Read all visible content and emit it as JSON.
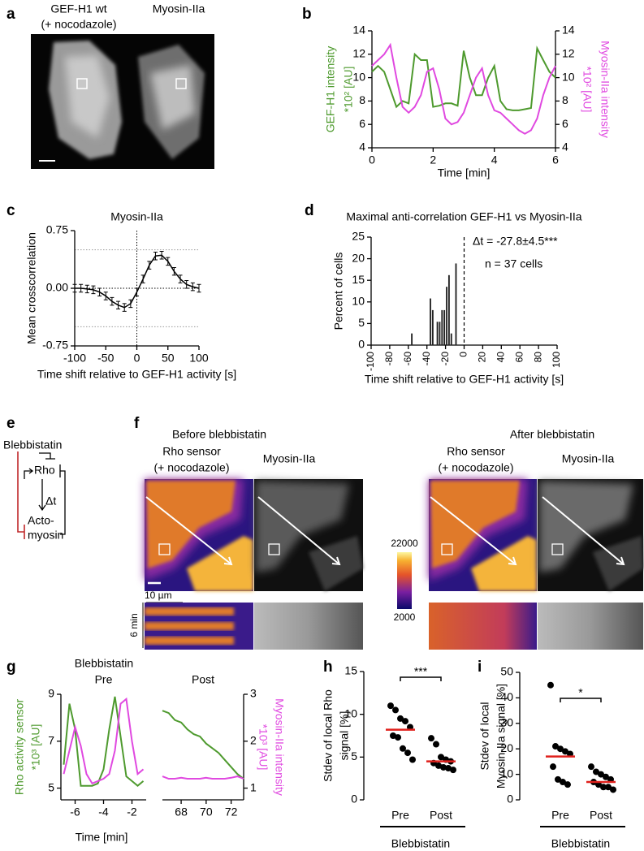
{
  "figure": {
    "a": {
      "letter": "a",
      "labels": [
        "GEF-H1 wt",
        "(+ nocodazole)",
        "Myosin-IIa"
      ]
    },
    "e": {
      "letter": "e",
      "nodes": [
        "Blebbistatin",
        "Rho",
        "Δt",
        "Acto-",
        "myosin"
      ]
    },
    "f": {
      "letter": "f",
      "before": {
        "title": "Before blebbistatin",
        "labels": [
          "Rho sensor",
          "(+ nocodazole)",
          "Myosin-IIa"
        ]
      },
      "after": {
        "title": "After blebbistatin",
        "labels": [
          "Rho sensor",
          "(+ nocodazole)",
          "Myosin-IIa"
        ]
      },
      "colorbar": {
        "max": 22000,
        "min": 2000
      },
      "scale_label": "10 µm",
      "time_label": "6 min"
    },
    "g": {
      "letter": "g",
      "title": "Blebbistatin",
      "xlabel": "Time [min]"
    }
  },
  "chart_data": [
    {
      "type": "line",
      "panel": "b",
      "x": [
        0,
        0.2,
        0.4,
        0.6,
        0.8,
        1,
        1.2,
        1.4,
        1.6,
        1.8,
        2,
        2.2,
        2.4,
        2.6,
        2.8,
        3,
        3.2,
        3.4,
        3.6,
        3.8,
        4,
        4.2,
        4.4,
        4.6,
        4.8,
        5,
        5.2,
        5.4,
        5.6,
        5.8,
        6
      ],
      "xlim": [
        0,
        6
      ],
      "xticks": [
        0,
        2,
        4,
        6
      ],
      "ylim": [
        4,
        14
      ],
      "yticks": [
        4,
        6,
        8,
        10,
        12,
        14
      ],
      "y2lim": [
        4,
        14
      ],
      "y2ticks": [
        4,
        6,
        8,
        10,
        12,
        14
      ],
      "xlabel": "Time [min]",
      "ylabel": [
        "GEF-H1 intensity",
        "*10² [AU]"
      ],
      "y2label": [
        "Myosin-IIa intensity",
        "*10² [AU]"
      ],
      "series": [
        {
          "color": "#4e9a2e",
          "values": [
            10.5,
            11,
            10.5,
            9,
            7.5,
            8,
            7.8,
            12,
            11.5,
            11.5,
            7.5,
            7.6,
            7.8,
            7.8,
            7.6,
            12.3,
            10,
            8.5,
            8.5,
            10,
            11,
            8,
            7.3,
            7.2,
            7.2,
            7.3,
            7.4,
            12.5,
            11.5,
            10.5,
            10
          ]
        },
        {
          "color": "#e049e0",
          "axis": "y2",
          "values": [
            11,
            11.5,
            12,
            12.8,
            10,
            7.5,
            7,
            7.5,
            8.5,
            10.5,
            10.8,
            9,
            6.5,
            6,
            6.2,
            7,
            8.5,
            10,
            10.8,
            8.5,
            7.2,
            7,
            6.5,
            6,
            5.5,
            5.2,
            5.5,
            6.5,
            8.5,
            10,
            11
          ]
        }
      ]
    },
    {
      "type": "errorline",
      "panel": "c",
      "title": "Myosin-IIa",
      "x": [
        -100,
        -90,
        -80,
        -70,
        -60,
        -50,
        -40,
        -30,
        -20,
        -10,
        0,
        10,
        20,
        30,
        40,
        50,
        60,
        70,
        80,
        90,
        100
      ],
      "values": [
        0,
        0,
        -0.01,
        -0.02,
        -0.05,
        -0.1,
        -0.17,
        -0.22,
        -0.25,
        -0.2,
        -0.05,
        0.12,
        0.3,
        0.42,
        0.43,
        0.35,
        0.22,
        0.12,
        0.05,
        0.02,
        0
      ],
      "errors": [
        0.05,
        0.05,
        0.05,
        0.05,
        0.05,
        0.05,
        0.05,
        0.05,
        0.05,
        0.05,
        0.05,
        0.05,
        0.05,
        0.05,
        0.05,
        0.05,
        0.05,
        0.05,
        0.05,
        0.05,
        0.05
      ],
      "color": "#000000",
      "xlim": [
        -100,
        100
      ],
      "xticks": [
        -100,
        -50,
        0,
        50,
        100
      ],
      "ylim": [
        -0.75,
        0.75
      ],
      "yticks": [
        -0.75,
        {
          "value": 0,
          "label": "0.00"
        },
        0.75
      ],
      "hlines": [
        -0.5,
        0,
        0.5
      ],
      "vlines": [
        0
      ],
      "xlabel": "Time shift relative to GEF-H1 activity [s]",
      "ylabel": "Mean crosscorrelation"
    },
    {
      "type": "histogram",
      "panel": "d",
      "title": "Maximal anti-correlation GEF-H1 vs Myosin-IIa",
      "bins": [
        -60,
        -57.5,
        -55,
        -52.5,
        -50,
        -47.5,
        -45,
        -42.5,
        -40,
        -37.5,
        -35,
        -32.5,
        -30,
        -27.5,
        -25,
        -22.5,
        -20,
        -17.5,
        -15,
        -12.5,
        -10,
        -7.5
      ],
      "values": [
        0,
        2.7,
        0,
        0,
        0,
        0,
        0,
        0,
        0,
        10.8,
        8.1,
        0,
        5.4,
        5.4,
        8.1,
        8.1,
        13.5,
        16.2,
        2.7,
        0,
        18.9
      ],
      "color": "#222222",
      "xlim": [
        -100,
        100
      ],
      "xticks": [
        -100,
        -80,
        -60,
        -40,
        -20,
        0,
        20,
        40,
        60,
        80,
        100
      ],
      "ylim": [
        0,
        25
      ],
      "yticks": [
        0,
        5,
        10,
        15,
        20,
        25
      ],
      "vlines": [
        0
      ],
      "annotations": [
        "Δt = -27.8±4.5***",
        "n = 37 cells"
      ],
      "xlabel": "Time shift relative to GEF-H1 activity [s]",
      "ylabel": "Percent of cells"
    },
    {
      "type": "line",
      "title": "Pre",
      "x": [
        -6.8,
        -6.4,
        -6,
        -5.6,
        -5.2,
        -4.8,
        -4.4,
        -4,
        -3.6,
        -3.2,
        -2.8,
        -2.4,
        -2,
        -1.6,
        -1.2
      ],
      "xlim": [
        -7,
        -1
      ],
      "xticks": [
        -6,
        -4,
        -2
      ],
      "ylim": [
        4.5,
        9
      ],
      "yticks": [
        5,
        7,
        9
      ],
      "y2lim": [
        0.75,
        3
      ],
      "ylabel": [
        "Rho activity sensor",
        "*10³ [AU]"
      ],
      "series": [
        {
          "color": "#4e9a2e",
          "values": [
            6,
            8.6,
            7.5,
            5.1,
            5.1,
            5.1,
            5.2,
            5.8,
            7.5,
            8.9,
            7.2,
            5.5,
            5.3,
            5.1,
            5.3
          ]
        },
        {
          "color": "#e049e0",
          "axis": "y2",
          "values": [
            1.3,
            1.8,
            2.3,
            1.9,
            1.3,
            1.1,
            1.15,
            1.2,
            1.3,
            1.8,
            2.8,
            2.9,
            2,
            1.3,
            1.4
          ]
        }
      ]
    },
    {
      "type": "line",
      "title": "Post",
      "x": [
        66.5,
        67,
        67.5,
        68,
        68.5,
        69,
        69.5,
        70,
        70.5,
        71,
        71.5,
        72,
        72.5,
        73
      ],
      "xlim": [
        66.5,
        73
      ],
      "xticks": [
        68,
        70,
        72
      ],
      "ylim": [
        4.5,
        9
      ],
      "y2lim": [
        0.75,
        3
      ],
      "y2ticks": [
        1,
        2,
        3
      ],
      "y2label": [
        "Myosin-IIa intensity",
        "*10³ [AU]"
      ],
      "series": [
        {
          "color": "#4e9a2e",
          "values": [
            8.3,
            8.2,
            7.9,
            7.8,
            7.5,
            7.3,
            7.2,
            6.9,
            6.7,
            6.5,
            6.2,
            5.9,
            5.6,
            5.4
          ]
        },
        {
          "color": "#e049e0",
          "axis": "y2",
          "values": [
            1.25,
            1.2,
            1.2,
            1.22,
            1.2,
            1.2,
            1.2,
            1.22,
            1.2,
            1.2,
            1.2,
            1.22,
            1.25,
            1.2
          ]
        }
      ]
    },
    {
      "type": "dot",
      "panel": "h",
      "categories": [
        "Pre",
        "Post"
      ],
      "points": [
        [
          11,
          10.5,
          9.5,
          9.2,
          8.5,
          7.5,
          7.3,
          6,
          5.5,
          4.7
        ],
        [
          7.2,
          6.5,
          5,
          4.7,
          4.5,
          4.3,
          4,
          3.8,
          3.7,
          3.5
        ]
      ],
      "medians": [
        8.2,
        4.5
      ],
      "color": "#000000",
      "median_color": "#e0201c",
      "ylim": [
        0,
        15
      ],
      "yticks": [
        0,
        5,
        10,
        15
      ],
      "ylabel": [
        "Stdev of local Rho",
        "signal [%]"
      ],
      "xlabel": "Blebbistatin",
      "significance": "***"
    },
    {
      "type": "dot",
      "panel": "i",
      "categories": [
        "Pre",
        "Post"
      ],
      "points": [
        [
          45,
          21,
          20,
          19,
          18,
          13,
          8,
          7,
          6
        ],
        [
          13,
          11,
          10,
          9,
          8,
          7,
          6,
          5,
          5,
          4
        ]
      ],
      "medians": [
        17,
        7
      ],
      "color": "#000000",
      "median_color": "#e0201c",
      "ylim": [
        0,
        50
      ],
      "yticks": [
        0,
        10,
        20,
        30,
        40,
        50
      ],
      "ylabel": [
        "Stdev of local",
        "Myosin-IIa signal [%]"
      ],
      "xlabel": "Blebbistatin",
      "significance": "*"
    }
  ]
}
